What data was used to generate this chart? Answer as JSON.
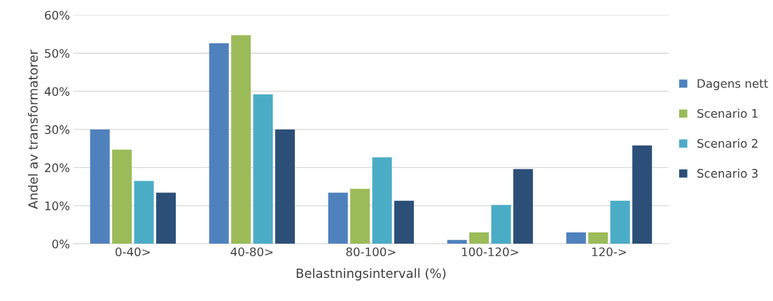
{
  "chart_data": {
    "type": "bar",
    "xlabel": "Belastningsintervall (%)",
    "ylabel": "Andel av transformatorer",
    "categories": [
      "0-40>",
      "40-80>",
      "80-100>",
      "100-120>",
      "120->"
    ],
    "series": [
      {
        "name": "Dagens nett",
        "color": "#4f81bd",
        "values": [
          30,
          52.6,
          13.4,
          1.0,
          3.0
        ]
      },
      {
        "name": "Scenario 1",
        "color": "#9bbb59",
        "values": [
          24.7,
          54.7,
          14.4,
          3.0,
          3.0
        ]
      },
      {
        "name": "Scenario 2",
        "color": "#4bacc6",
        "values": [
          16.5,
          39.2,
          22.7,
          10.2,
          11.3
        ]
      },
      {
        "name": "Scenario 3",
        "color": "#2c4f78",
        "values": [
          13.4,
          30,
          11.3,
          19.6,
          25.8
        ]
      }
    ],
    "ylim": [
      0,
      60
    ],
    "yticks": [
      {
        "value": 0,
        "label": "0%"
      },
      {
        "value": 10,
        "label": "10%"
      },
      {
        "value": 20,
        "label": "20%"
      },
      {
        "value": 30,
        "label": "30%"
      },
      {
        "value": 40,
        "label": "40%"
      },
      {
        "value": 50,
        "label": "50%"
      },
      {
        "value": 60,
        "label": "60%"
      }
    ],
    "grid": "y",
    "legend": "right"
  }
}
